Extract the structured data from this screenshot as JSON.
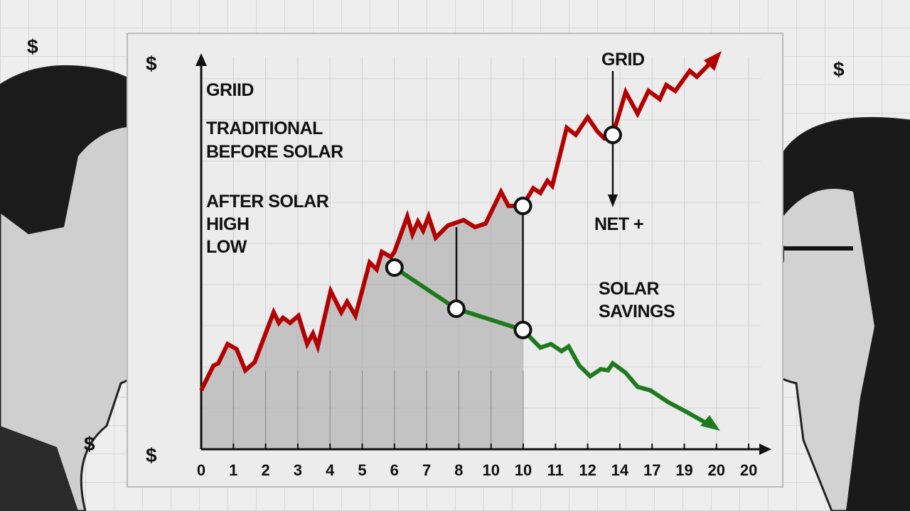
{
  "dollar_sign": "$",
  "labels": {
    "griid": "GRIID",
    "traditional": "TRADITIONAL",
    "before_solar": "BEFORE SOLAR",
    "after_solar": "AFTER SOLAR",
    "high": "HIGH",
    "low": "LOW",
    "grid": "GRID",
    "net": "NET +",
    "solar": "SOLAR",
    "savings": "SAVINGS"
  },
  "colors": {
    "grid_line": "#b30000",
    "solar_line": "#1f7a1f",
    "shade": "#a9a9a9"
  },
  "chart_data": {
    "type": "line",
    "title": "",
    "xlabel": "",
    "ylabel": "",
    "x_tick_labels": [
      "0",
      "1",
      "2",
      "3",
      "4",
      "5",
      "6",
      "7",
      "8",
      "10",
      "10",
      "11",
      "12",
      "14",
      "17",
      "19",
      "20",
      "20"
    ],
    "xlim": [
      0,
      17
    ],
    "ylim": [
      0,
      100
    ],
    "grid": true,
    "series": [
      {
        "name": "Grid",
        "color": "#b30000",
        "x": [
          0,
          0.38,
          0.53,
          0.82,
          1.1,
          1.37,
          1.66,
          2.25,
          2.41,
          2.54,
          2.76,
          3.02,
          3.29,
          3.47,
          3.62,
          4.02,
          4.35,
          4.53,
          4.79,
          5.23,
          5.45,
          5.61,
          5.89,
          6.0,
          6.4,
          6.56,
          6.73,
          6.89,
          7.06,
          7.28,
          7.66,
          8.15,
          8.5,
          8.83,
          9.31,
          9.54,
          9.98,
          10.31,
          10.53,
          10.75,
          10.9,
          11.35,
          11.63,
          12.0,
          12.3,
          12.52,
          12.78,
          13.18,
          13.55,
          13.89,
          14.24,
          14.44,
          14.72,
          15.17,
          15.39,
          15.83
        ],
        "y": [
          15,
          21.3,
          21.9,
          26.8,
          25.5,
          20.1,
          22.2,
          34.9,
          32.2,
          33.5,
          32.2,
          34,
          26.8,
          29.5,
          26.2,
          40.3,
          34.9,
          37.6,
          34,
          47.6,
          45.8,
          50.3,
          49,
          50.3,
          59.3,
          54.8,
          58,
          55.7,
          59.3,
          53.9,
          57,
          58.4,
          56.6,
          57.5,
          65.6,
          62,
          62,
          66.5,
          65.3,
          68.4,
          67.1,
          81.9,
          80.1,
          84.6,
          81,
          79.2,
          80.1,
          91,
          85.5,
          91.3,
          89.2,
          92.8,
          91.3,
          96.4,
          94.9,
          98.6
        ]
      },
      {
        "name": "Solar",
        "color": "#1f7a1f",
        "x": [
          6.0,
          7.92,
          9.99,
          10.53,
          10.86,
          11.19,
          11.41,
          11.74,
          12.08,
          12.41,
          12.63,
          12.78,
          13.18,
          13.55,
          13.95,
          14.5,
          15.05,
          15.83
        ],
        "y": [
          46.3,
          35.8,
          30.4,
          25.9,
          26.8,
          25,
          26.2,
          21.3,
          18.6,
          20.4,
          20.1,
          21.9,
          19.5,
          15.9,
          15,
          12,
          9.6,
          6
        ]
      }
    ],
    "markers": [
      {
        "x": 6.0,
        "y": 46.3
      },
      {
        "x": 7.92,
        "y": 35.8
      },
      {
        "x": 9.99,
        "y": 30.4
      },
      {
        "x": 9.99,
        "y": 62
      },
      {
        "x": 12.78,
        "y": 80.1
      }
    ],
    "shaded_region": {
      "x_from": 0,
      "x_to": 10
    }
  }
}
